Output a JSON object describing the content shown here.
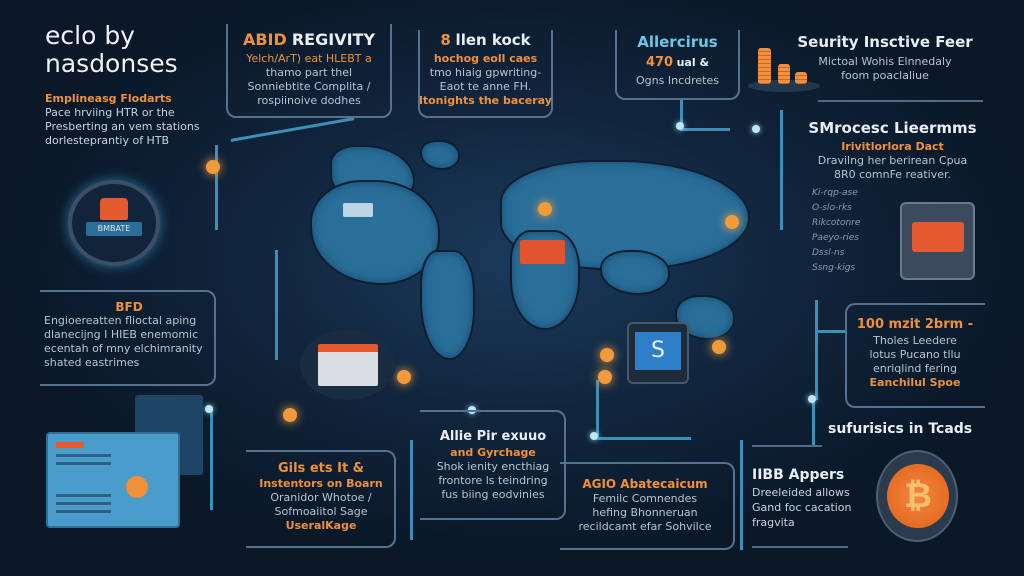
{
  "title": {
    "line1": "eclo by",
    "line2": "nasdonses"
  },
  "intro": {
    "heading": "Emplineasg Flodarts",
    "lines": [
      "Pace hrviing HTR or the",
      "Presberting an vem stations",
      "dorlesteprantiy of HTB"
    ]
  },
  "box_abid": {
    "title_orange": "ABID",
    "title_white": "REGIVITY",
    "lines": [
      "Yelch/ArT) eat HLEBT a",
      "thamo part thel",
      "Sonniebtite Complita /",
      "rospiinoive dodhes"
    ]
  },
  "box_llen": {
    "title_num": "8",
    "title": "llen kock",
    "sub": "hochog eoll caes",
    "lines": [
      "tmo hiaig gpwriting-",
      "Eaot te anne FH."
    ],
    "footer": "ltonights the baceray"
  },
  "box_aller": {
    "title": "Allercirus",
    "value": "470",
    "value_suffix": "ual &",
    "line": "Ogns Incdretes"
  },
  "security": {
    "title": "Seurity Insctive Feer",
    "lines": [
      "Mictoal Wohis Elnnedaly",
      "foom poaclaliue"
    ]
  },
  "smrocesc": {
    "title": "SMrocesc Lieermms",
    "sub": "Irivitlorlora Dact",
    "lines": [
      "Dravilng her berirean Cpua",
      "8R0 comnFe reativer."
    ],
    "items": [
      "Ki-rqp-ase",
      "O-slo-rks",
      "Rikcotonre",
      "Paeyo-ries",
      "Dssl-ns",
      "Ssng-kigs"
    ]
  },
  "lock_badge": {
    "label": "BMBATE"
  },
  "box_bfd": {
    "title": "BFD",
    "lines": [
      "Engioereatten flioctal aping",
      "dlanecijng I HIEB enemomic",
      "ecentah of mny elchimranity",
      "shated eastrimes"
    ]
  },
  "box_gils": {
    "title": "Gils ets It &",
    "sub": "Instentors on Boarn",
    "lines": [
      "Oranidor Whotoe /",
      "Sofmoaiitol Sage"
    ],
    "footer": "UseralKage"
  },
  "box_allie": {
    "title": "Allie Pir exuuo",
    "sub": "and Gyrchage",
    "lines": [
      "Shok ienity encthiag",
      "frontore ls teindring",
      "fus biing eodvinies"
    ]
  },
  "box_agio": {
    "title": "AGIO Abatecaicum",
    "lines": [
      "Femilc Comnendes",
      "hefing Bhonneruan",
      "recildcamt efar Sohvilce"
    ]
  },
  "box_100": {
    "title": "100 mzit 2brm -",
    "lines": [
      "Tholes Leedere",
      "lotus Pucano tllu",
      "enriqlind fering"
    ],
    "footer": "Eanchilul Spoe"
  },
  "trends": {
    "title": "sufurisics in Tcads"
  },
  "iibb": {
    "title": "IIBB Appers",
    "lines": [
      "Dreeleided allows",
      "Gand foc cacation",
      "fragvita"
    ]
  },
  "icons": [
    "lock-icon",
    "coin-stack-icon",
    "bitcoin-icon",
    "world-map",
    "tablet-icon",
    "s-logo-device-icon"
  ],
  "colors": {
    "background": "#0b1a2c",
    "accent_orange": "#f0913a",
    "line_blue": "#3d8fb8",
    "map_blue": "#2a6f9a"
  }
}
